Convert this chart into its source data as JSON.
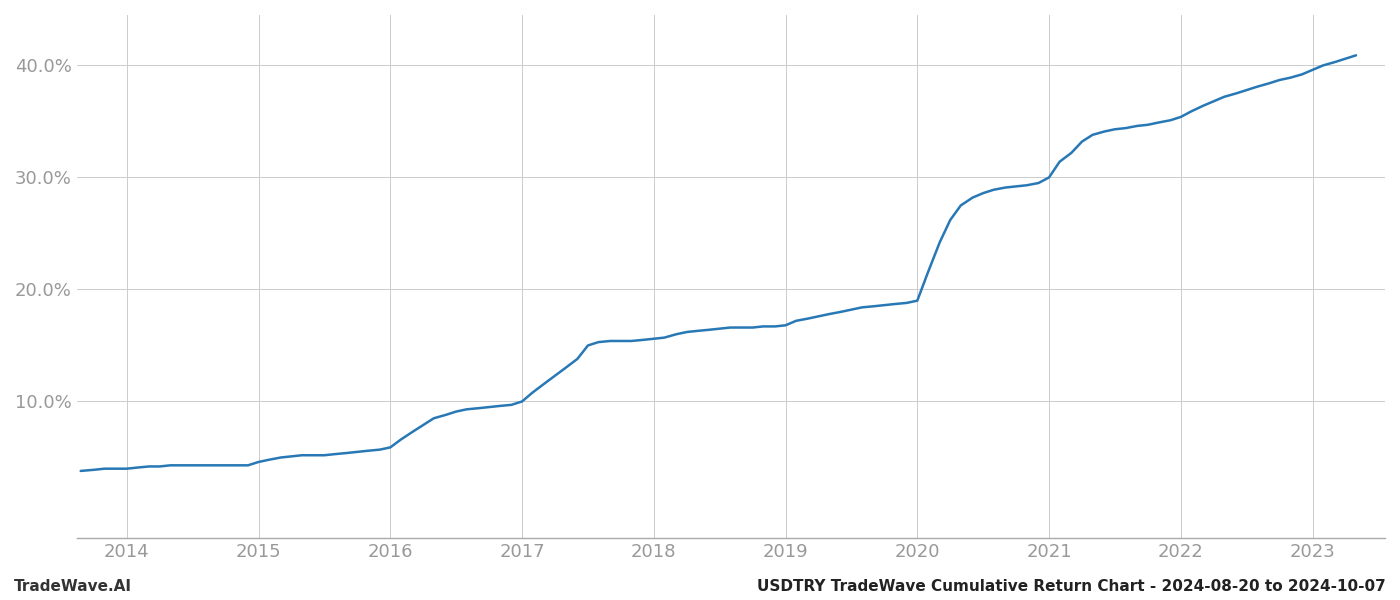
{
  "title": "USDTRY TradeWave Cumulative Return Chart - 2024-08-20 to 2024-10-07",
  "watermark": "TradeWave.AI",
  "line_color": "#2878b5",
  "line_width": 1.8,
  "background_color": "#ffffff",
  "grid_color": "#cccccc",
  "ylabel": "",
  "xlabel": "",
  "xlim_start": 2013.62,
  "xlim_end": 2023.55,
  "ylim_min": -0.022,
  "ylim_max": 0.445,
  "yticks": [
    0.1,
    0.2,
    0.3,
    0.4
  ],
  "ytick_labels": [
    "10.0%",
    "20.0%",
    "30.0%",
    "40.0%"
  ],
  "xticks": [
    2014,
    2015,
    2016,
    2017,
    2018,
    2019,
    2020,
    2021,
    2022,
    2023
  ],
  "x_values": [
    2013.65,
    2013.75,
    2013.83,
    2013.92,
    2014.0,
    2014.08,
    2014.17,
    2014.25,
    2014.33,
    2014.42,
    2014.5,
    2014.58,
    2014.67,
    2014.75,
    2014.83,
    2014.92,
    2015.0,
    2015.08,
    2015.17,
    2015.25,
    2015.33,
    2015.42,
    2015.5,
    2015.58,
    2015.67,
    2015.75,
    2015.83,
    2015.92,
    2016.0,
    2016.08,
    2016.17,
    2016.25,
    2016.33,
    2016.42,
    2016.5,
    2016.58,
    2016.67,
    2016.75,
    2016.83,
    2016.92,
    2017.0,
    2017.08,
    2017.17,
    2017.25,
    2017.33,
    2017.42,
    2017.5,
    2017.58,
    2017.67,
    2017.75,
    2017.83,
    2017.92,
    2018.0,
    2018.08,
    2018.17,
    2018.25,
    2018.33,
    2018.42,
    2018.5,
    2018.58,
    2018.67,
    2018.75,
    2018.83,
    2018.92,
    2019.0,
    2019.08,
    2019.17,
    2019.25,
    2019.33,
    2019.42,
    2019.5,
    2019.58,
    2019.67,
    2019.75,
    2019.83,
    2019.92,
    2020.0,
    2020.08,
    2020.17,
    2020.25,
    2020.33,
    2020.42,
    2020.5,
    2020.58,
    2020.67,
    2020.75,
    2020.83,
    2020.92,
    2021.0,
    2021.08,
    2021.17,
    2021.25,
    2021.33,
    2021.42,
    2021.5,
    2021.58,
    2021.67,
    2021.75,
    2021.83,
    2021.92,
    2022.0,
    2022.08,
    2022.17,
    2022.25,
    2022.33,
    2022.42,
    2022.5,
    2022.58,
    2022.67,
    2022.75,
    2022.83,
    2022.92,
    2023.0,
    2023.08,
    2023.17,
    2023.25,
    2023.33
  ],
  "y_values": [
    0.038,
    0.039,
    0.04,
    0.04,
    0.04,
    0.041,
    0.042,
    0.042,
    0.043,
    0.043,
    0.043,
    0.043,
    0.043,
    0.043,
    0.043,
    0.043,
    0.046,
    0.048,
    0.05,
    0.051,
    0.052,
    0.052,
    0.052,
    0.053,
    0.054,
    0.055,
    0.056,
    0.057,
    0.059,
    0.066,
    0.073,
    0.079,
    0.085,
    0.088,
    0.091,
    0.093,
    0.094,
    0.095,
    0.096,
    0.097,
    0.1,
    0.108,
    0.116,
    0.123,
    0.13,
    0.138,
    0.15,
    0.153,
    0.154,
    0.154,
    0.154,
    0.155,
    0.156,
    0.157,
    0.16,
    0.162,
    0.163,
    0.164,
    0.165,
    0.166,
    0.166,
    0.166,
    0.167,
    0.167,
    0.168,
    0.172,
    0.174,
    0.176,
    0.178,
    0.18,
    0.182,
    0.184,
    0.185,
    0.186,
    0.187,
    0.188,
    0.19,
    0.215,
    0.242,
    0.262,
    0.275,
    0.282,
    0.286,
    0.289,
    0.291,
    0.292,
    0.293,
    0.295,
    0.3,
    0.314,
    0.322,
    0.332,
    0.338,
    0.341,
    0.343,
    0.344,
    0.346,
    0.347,
    0.349,
    0.351,
    0.354,
    0.359,
    0.364,
    0.368,
    0.372,
    0.375,
    0.378,
    0.381,
    0.384,
    0.387,
    0.389,
    0.392,
    0.396,
    0.4,
    0.403,
    0.406,
    0.409
  ],
  "tick_color": "#999999",
  "tick_fontsize": 13,
  "footer_fontsize": 11,
  "title_fontsize": 11,
  "title_color": "#222222",
  "watermark_color": "#333333"
}
